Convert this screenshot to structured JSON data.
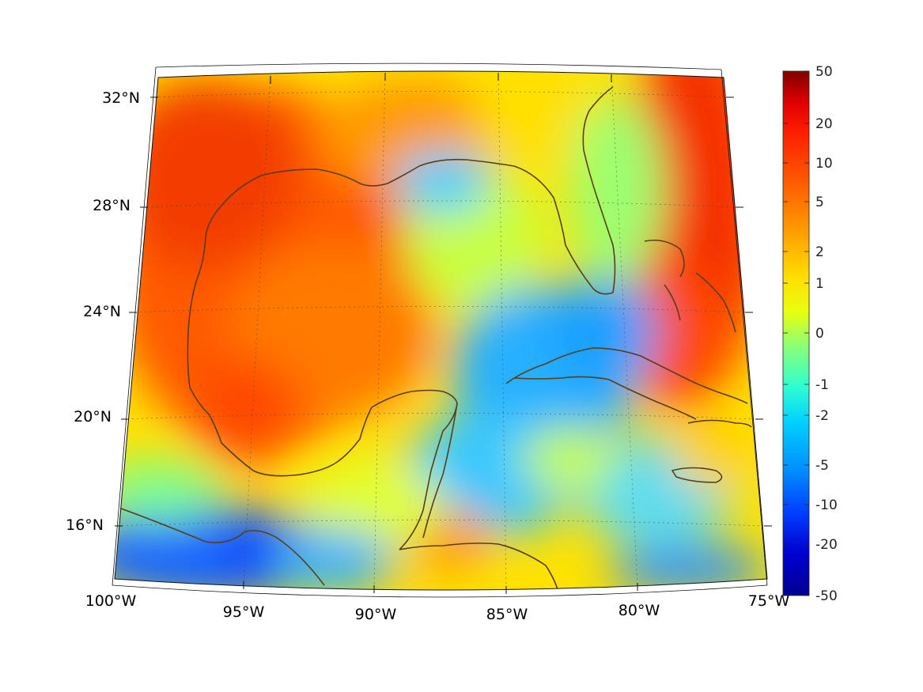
{
  "map": {
    "projection": "conic",
    "lon_range": [
      -100,
      -75
    ],
    "lat_range": [
      14,
      33
    ],
    "grid": true,
    "coastline_color": "#5a3e1b",
    "lon_labels": [
      "100°W",
      "95°W",
      "90°W",
      "85°W",
      "80°W",
      "75°W"
    ],
    "lat_labels": [
      "32°N",
      "28°N",
      "24°N",
      "20°N",
      "16°N"
    ],
    "field_regions": [
      {
        "name": "western-gulf-warm",
        "level": "high",
        "color": "#ff5a00"
      },
      {
        "name": "eastern-atlantic-warm",
        "level": "high",
        "color": "#f53000"
      },
      {
        "name": "florida-straits-cool",
        "level": "low",
        "color": "#25b0ff"
      },
      {
        "name": "pacific-cool",
        "level": "low",
        "color": "#1565ff"
      },
      {
        "name": "central-gulf-mixed",
        "level": "mid",
        "color": "#ffe000"
      }
    ]
  },
  "colorbar": {
    "ticks": [
      "50",
      "20",
      "10",
      "5",
      "2",
      "1",
      "0",
      "-1",
      "-2",
      "-5",
      "-10",
      "-20",
      "-50"
    ],
    "colors": [
      "#800000",
      "#e00000",
      "#ff2000",
      "#ff6000",
      "#ffa000",
      "#ffdd00",
      "#e8ff10",
      "#90ff70",
      "#30ffd0",
      "#00d0ff",
      "#0090ff",
      "#0040ff",
      "#0000d0",
      "#000090"
    ]
  }
}
